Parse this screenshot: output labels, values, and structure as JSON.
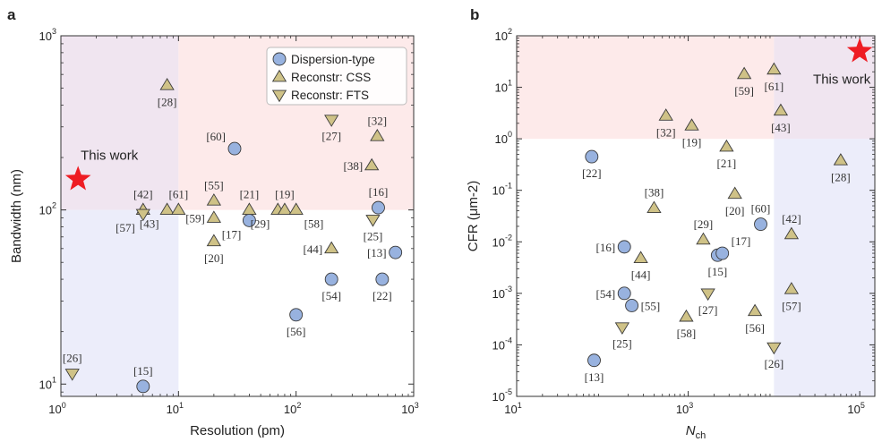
{
  "panels_meta": [
    {
      "id": "a",
      "letter": "a",
      "ylabel": "Bandwidth (nm)",
      "xlabel": "Resolution (pm)"
    },
    {
      "id": "b",
      "letter": "b",
      "ylabel": "CFR (μm-2)",
      "xlabel_main": "N",
      "xlabel_sub": "ch"
    }
  ],
  "colors": {
    "dispersion": "#98b2df",
    "reconstr": "#cfc287",
    "marker_edge": "#3a3a3a",
    "star": "#ee1c23",
    "region_red": "#fdeaea",
    "region_purple": "#f0e5f0",
    "region_blue": "#ecedfa"
  },
  "chart_data": [
    {
      "type": "scatter",
      "panel": "a",
      "xlabel": "Resolution (pm)",
      "ylabel": "Bandwidth (nm)",
      "xscale": "log",
      "yscale": "log",
      "xlim": [
        1,
        1000
      ],
      "ylim": [
        8.5,
        1000
      ],
      "xticks": [
        {
          "v": 1,
          "label": "10",
          "exp": "0"
        },
        {
          "v": 10,
          "label": "10",
          "exp": "1"
        },
        {
          "v": 100,
          "label": "10",
          "exp": "2"
        },
        {
          "v": 1000,
          "label": "10",
          "exp": "3"
        }
      ],
      "yticks": [
        {
          "v": 10,
          "label": "10",
          "exp": "1"
        },
        {
          "v": 100,
          "label": "10",
          "exp": "2"
        },
        {
          "v": 1000,
          "label": "10",
          "exp": "3"
        }
      ],
      "regions": [
        {
          "x": [
            1,
            10
          ],
          "y": [
            100,
            1000
          ],
          "color": "region_purple"
        },
        {
          "x": [
            10,
            1000
          ],
          "y": [
            100,
            1000
          ],
          "color": "region_red"
        },
        {
          "x": [
            1,
            10
          ],
          "y": [
            8.5,
            100
          ],
          "color": "region_blue"
        }
      ],
      "legend": {
        "position": "top-right",
        "entries": [
          {
            "label": "Dispersion-type",
            "marker": "circle"
          },
          {
            "label": "Reconstr: CSS",
            "marker": "tri-up"
          },
          {
            "label": "Reconstr: FTS",
            "marker": "tri-down"
          }
        ]
      },
      "this_work": {
        "x": 1.4,
        "y": 150,
        "label": "This work",
        "label_pos": "above"
      },
      "series": [
        {
          "name": "Dispersion-type",
          "marker": "circle",
          "points": [
            {
              "x": 30,
              "y": 225,
              "ref": "[60]",
              "lp": "nw"
            },
            {
              "x": 40,
              "y": 87,
              "ref": "[17]",
              "lp": "sw"
            },
            {
              "x": 500,
              "y": 103,
              "ref": "[16]",
              "lp": "n"
            },
            {
              "x": 700,
              "y": 57,
              "ref": "[13]",
              "lp": "w"
            },
            {
              "x": 200,
              "y": 40,
              "ref": "[54]",
              "lp": "s"
            },
            {
              "x": 540,
              "y": 40,
              "ref": "[22]",
              "lp": "s"
            },
            {
              "x": 100,
              "y": 25,
              "ref": "[56]",
              "lp": "s"
            },
            {
              "x": 5,
              "y": 9.7,
              "ref": "[15]",
              "lp": "n"
            }
          ]
        },
        {
          "name": "Reconstr: CSS",
          "marker": "tri-up",
          "points": [
            {
              "x": 8,
              "y": 520,
              "ref": "[28]",
              "lp": "s"
            },
            {
              "x": 490,
              "y": 265,
              "ref": "[32]",
              "lp": "n"
            },
            {
              "x": 440,
              "y": 180,
              "ref": "[38]",
              "lp": "w"
            },
            {
              "x": 5,
              "y": 100,
              "ref": "[42]",
              "lp": "n"
            },
            {
              "x": 8,
              "y": 100,
              "ref": "[43]",
              "lp": "sw"
            },
            {
              "x": 10,
              "y": 100,
              "ref": "[61]",
              "lp": "n"
            },
            {
              "x": 20,
              "y": 113,
              "ref": "[55]",
              "lp": "n"
            },
            {
              "x": 20,
              "y": 90,
              "ref": "[59]",
              "lp": "w"
            },
            {
              "x": 20,
              "y": 66,
              "ref": "[20]",
              "lp": "s"
            },
            {
              "x": 40,
              "y": 100,
              "ref": "[21]",
              "lp": "n"
            },
            {
              "x": 70,
              "y": 100,
              "ref": "[29]",
              "lp": "sw"
            },
            {
              "x": 80,
              "y": 100,
              "ref": "[19]",
              "lp": "n"
            },
            {
              "x": 100,
              "y": 100,
              "ref": "[58]",
              "lp": "se"
            },
            {
              "x": 200,
              "y": 60,
              "ref": "[44]",
              "lp": "w"
            }
          ]
        },
        {
          "name": "Reconstr: FTS",
          "marker": "tri-down",
          "points": [
            {
              "x": 200,
              "y": 330,
              "ref": "[27]",
              "lp": "s"
            },
            {
              "x": 5,
              "y": 95,
              "ref": "[57]",
              "lp": "sw"
            },
            {
              "x": 450,
              "y": 88,
              "ref": "[25]",
              "lp": "s"
            },
            {
              "x": 1.25,
              "y": 11.5,
              "ref": "[26]",
              "lp": "n"
            }
          ]
        }
      ]
    },
    {
      "type": "scatter",
      "panel": "b",
      "xlabel": "Nch",
      "ylabel": "CFR (μm-2)",
      "xscale": "log",
      "yscale": "log",
      "xlim": [
        10,
        150000
      ],
      "ylim": [
        1e-05,
        100
      ],
      "xticks": [
        {
          "v": 10,
          "label": "10",
          "exp": "1"
        },
        {
          "v": 1000,
          "label": "10",
          "exp": "3"
        },
        {
          "v": 100000,
          "label": "10",
          "exp": "5"
        }
      ],
      "yticks": [
        {
          "v": 1e-05,
          "label": "10",
          "exp": "-5"
        },
        {
          "v": 0.0001,
          "label": "10",
          "exp": "-4"
        },
        {
          "v": 0.001,
          "label": "10",
          "exp": "-3"
        },
        {
          "v": 0.01,
          "label": "10",
          "exp": "-2"
        },
        {
          "v": 0.1,
          "label": "10",
          "exp": "-1"
        },
        {
          "v": 1,
          "label": "10",
          "exp": "0"
        },
        {
          "v": 10,
          "label": "10",
          "exp": "1"
        },
        {
          "v": 100,
          "label": "10",
          "exp": "2"
        }
      ],
      "regions": [
        {
          "x": [
            10,
            10000
          ],
          "y": [
            1,
            100
          ],
          "color": "region_red"
        },
        {
          "x": [
            10000,
            150000
          ],
          "y": [
            1,
            100
          ],
          "color": "region_purple"
        },
        {
          "x": [
            10000,
            150000
          ],
          "y": [
            1e-05,
            1
          ],
          "color": "region_blue"
        }
      ],
      "this_work": {
        "x": 100000,
        "y": 50,
        "label": "This work",
        "label_pos": "below-left"
      },
      "series": [
        {
          "name": "Dispersion-type",
          "marker": "circle",
          "points": [
            {
              "x": 75,
              "y": 0.45,
              "ref": "[22]",
              "lp": "s"
            },
            {
              "x": 7000,
              "y": 0.022,
              "ref": "[60]",
              "lp": "n"
            },
            {
              "x": 180,
              "y": 0.008,
              "ref": "[16]",
              "lp": "w"
            },
            {
              "x": 2200,
              "y": 0.0055,
              "ref": "[15]",
              "lp": "s"
            },
            {
              "x": 2500,
              "y": 0.006,
              "ref": "[17]",
              "lp": "ne"
            },
            {
              "x": 180,
              "y": 0.001,
              "ref": "[54]",
              "lp": "w"
            },
            {
              "x": 220,
              "y": 0.00058,
              "ref": "[55]",
              "lp": "e"
            },
            {
              "x": 80,
              "y": 5e-05,
              "ref": "[13]",
              "lp": "s"
            }
          ]
        },
        {
          "name": "Reconstr: CSS",
          "marker": "tri-up",
          "points": [
            {
              "x": 4500,
              "y": 18,
              "ref": "[59]",
              "lp": "s"
            },
            {
              "x": 10000,
              "y": 22,
              "ref": "[61]",
              "lp": "s"
            },
            {
              "x": 12000,
              "y": 3.5,
              "ref": "[43]",
              "lp": "s"
            },
            {
              "x": 550,
              "y": 2.8,
              "ref": "[32]",
              "lp": "s"
            },
            {
              "x": 1100,
              "y": 1.8,
              "ref": "[19]",
              "lp": "s"
            },
            {
              "x": 2800,
              "y": 0.7,
              "ref": "[21]",
              "lp": "s"
            },
            {
              "x": 60000,
              "y": 0.38,
              "ref": "[28]",
              "lp": "s"
            },
            {
              "x": 400,
              "y": 0.045,
              "ref": "[38]",
              "lp": "n"
            },
            {
              "x": 3500,
              "y": 0.085,
              "ref": "[20]",
              "lp": "s"
            },
            {
              "x": 1500,
              "y": 0.011,
              "ref": "[29]",
              "lp": "n"
            },
            {
              "x": 16000,
              "y": 0.014,
              "ref": "[42]",
              "lp": "n"
            },
            {
              "x": 280,
              "y": 0.0048,
              "ref": "[44]",
              "lp": "s"
            },
            {
              "x": 950,
              "y": 0.00035,
              "ref": "[58]",
              "lp": "s"
            },
            {
              "x": 6000,
              "y": 0.00045,
              "ref": "[56]",
              "lp": "s"
            },
            {
              "x": 16000,
              "y": 0.0012,
              "ref": "[57]",
              "lp": "s"
            }
          ]
        },
        {
          "name": "Reconstr: FTS",
          "marker": "tri-down",
          "points": [
            {
              "x": 1700,
              "y": 0.001,
              "ref": "[27]",
              "lp": "s"
            },
            {
              "x": 170,
              "y": 0.00022,
              "ref": "[25]",
              "lp": "s"
            },
            {
              "x": 10000,
              "y": 9e-05,
              "ref": "[26]",
              "lp": "s"
            }
          ]
        }
      ]
    }
  ]
}
